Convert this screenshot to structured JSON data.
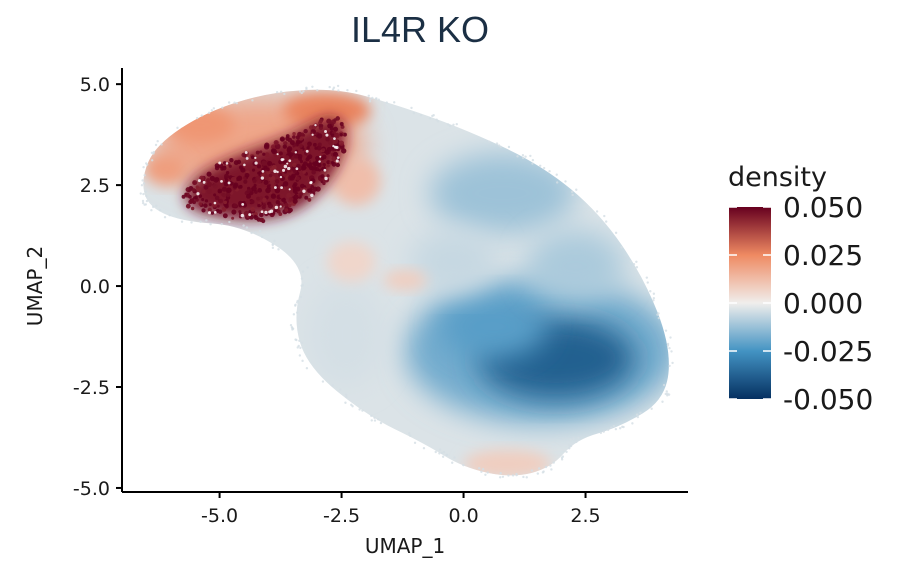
{
  "chart_data": {
    "type": "scatter",
    "title": "IL4R KO",
    "xlabel": "UMAP_1",
    "ylabel": "UMAP_2",
    "xlim": [
      -7.0,
      4.6
    ],
    "ylim": [
      -5.1,
      5.4
    ],
    "x_ticks": [
      {
        "value": -5.0,
        "label": "-5.0"
      },
      {
        "value": -2.5,
        "label": "-2.5"
      },
      {
        "value": 0.0,
        "label": "0.0"
      },
      {
        "value": 2.5,
        "label": "2.5"
      }
    ],
    "y_ticks": [
      {
        "value": 5.0,
        "label": "5.0"
      },
      {
        "value": 2.5,
        "label": "2.5"
      },
      {
        "value": 0.0,
        "label": "0.0"
      },
      {
        "value": -2.5,
        "label": "-2.5"
      },
      {
        "value": -5.0,
        "label": "-5.0"
      }
    ],
    "grid": false,
    "color_scale": {
      "title": "density",
      "min": -0.05,
      "max": 0.05,
      "palette": "RdBu (reversed)",
      "stops": [
        {
          "value": 0.05,
          "color": "#67001f"
        },
        {
          "value": 0.025,
          "color": "#ef8a62"
        },
        {
          "value": 0.0,
          "color": "#f0eeec"
        },
        {
          "value": -0.025,
          "color": "#4393c3"
        },
        {
          "value": -0.05,
          "color": "#053061"
        }
      ],
      "labels": [
        "0.050",
        "0.025",
        "0.000",
        "-0.025",
        "-0.050"
      ],
      "legend_position": "right"
    },
    "density_regions": [
      {
        "region": "upper-left cluster core",
        "x_range": [
          -5.8,
          -2.5
        ],
        "y_range": [
          1.5,
          4.2
        ],
        "density": 0.05
      },
      {
        "region": "upper-left cluster halo",
        "x_range": [
          -6.5,
          -2.0
        ],
        "y_range": [
          1.5,
          4.9
        ],
        "density": 0.02
      },
      {
        "region": "lower-right lobe",
        "x_range": [
          0.0,
          4.0
        ],
        "y_range": [
          -3.5,
          -0.5
        ],
        "density": -0.035
      },
      {
        "region": "upper-right region",
        "x_range": [
          -1.0,
          3.0
        ],
        "y_range": [
          0.5,
          4.0
        ],
        "density": -0.01
      },
      {
        "region": "bottom tip",
        "x_range": [
          0.0,
          2.0
        ],
        "y_range": [
          -4.7,
          -4.0
        ],
        "density": 0.008
      }
    ]
  }
}
